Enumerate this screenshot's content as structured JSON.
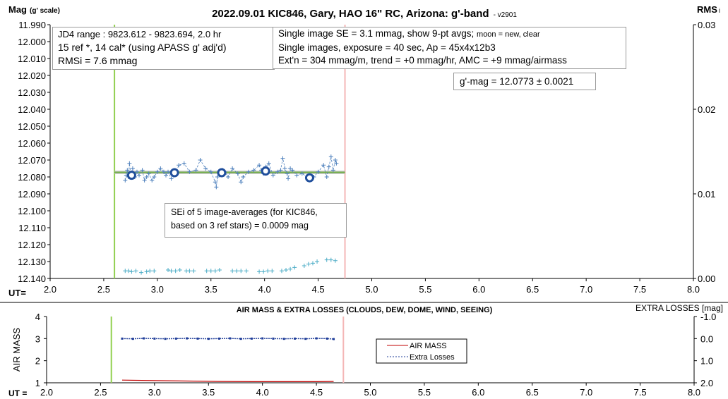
{
  "chart_data": [
    {
      "type": "scatter",
      "title": "2022.09.01 KIC846, Gary, HAO 16\" RC, Arizona: g'-band",
      "version": "- v2901",
      "ylabel_left": "Mag",
      "ylabel_left_note": "(g' scale)",
      "ylabel_right": "RMS",
      "ylabel_right_sub": "i",
      "xlabel": "UT=",
      "xlim": [
        2.0,
        8.0
      ],
      "ylim": [
        12.14,
        11.99
      ],
      "ylim_right": [
        0.0,
        0.03
      ],
      "grid": false,
      "x_ticks": [
        "2.0",
        "2.5",
        "3.0",
        "3.5",
        "4.0",
        "4.5",
        "5.0",
        "5.5",
        "6.0",
        "6.5",
        "7.0",
        "7.5",
        "8.0"
      ],
      "y_ticks": [
        "11.990",
        "12.000",
        "12.010",
        "12.020",
        "12.030",
        "12.040",
        "12.050",
        "12.060",
        "12.070",
        "12.080",
        "12.090",
        "12.100",
        "12.110",
        "12.120",
        "12.130",
        "12.140"
      ],
      "y_ticks_right": [
        "0.03",
        "0.02",
        "0.01",
        "0.00"
      ],
      "vlines": [
        {
          "name": "start",
          "x": 2.6,
          "color": "#92d050"
        },
        {
          "name": "end",
          "x": 4.75,
          "color": "#f4b6b6"
        }
      ],
      "mean_line": {
        "x": [
          2.6,
          4.75
        ],
        "y": 12.0773,
        "color": "#bfbfbf"
      },
      "fit_line": {
        "x": [
          2.6,
          4.75
        ],
        "y": 12.0773,
        "color": "#70ad47"
      },
      "series": [
        {
          "kind": "single",
          "color": "#4f81bd",
          "x": [
            2.7,
            2.71,
            2.72,
            2.73,
            2.74,
            2.75,
            2.77,
            2.79,
            2.81,
            2.83,
            2.86,
            2.88,
            2.9,
            2.92,
            2.95,
            2.97,
            3.0,
            3.03,
            3.06,
            3.08,
            3.1,
            3.13,
            3.15,
            3.17,
            3.2,
            3.25,
            3.3,
            3.36,
            3.4,
            3.45,
            3.5,
            3.54,
            3.55,
            3.56,
            3.58,
            3.61,
            3.63,
            3.66,
            3.7,
            3.75,
            3.78,
            3.8,
            3.85,
            3.9,
            3.95,
            3.97,
            3.99,
            4.01,
            4.04,
            4.08,
            4.12,
            4.15,
            4.17,
            4.19,
            4.21,
            4.22,
            4.24,
            4.26,
            4.3,
            4.35,
            4.4,
            4.46,
            4.5,
            4.55,
            4.58,
            4.6,
            4.62,
            4.64,
            4.66,
            4.67
          ],
          "y": [
            12.082,
            12.079,
            12.076,
            12.08,
            12.072,
            12.078,
            12.075,
            12.08,
            12.077,
            12.079,
            12.076,
            12.082,
            12.08,
            12.078,
            12.082,
            12.08,
            12.077,
            12.075,
            12.077,
            12.079,
            12.077,
            12.081,
            12.079,
            12.078,
            12.073,
            12.072,
            12.077,
            12.076,
            12.07,
            12.075,
            12.077,
            12.083,
            12.086,
            12.08,
            12.078,
            12.076,
            12.077,
            12.08,
            12.075,
            12.078,
            12.083,
            12.08,
            12.077,
            12.076,
            12.073,
            12.076,
            12.078,
            12.074,
            12.072,
            12.079,
            12.077,
            12.076,
            12.069,
            12.075,
            12.078,
            12.081,
            12.075,
            12.076,
            12.079,
            12.078,
            12.08,
            12.08,
            12.077,
            12.073,
            12.08,
            12.074,
            12.068,
            12.076,
            12.07,
            12.072
          ]
        },
        {
          "kind": "9-pt avg",
          "color": "#1f4e9c",
          "x": [
            2.76,
            3.16,
            3.6,
            4.01,
            4.42
          ],
          "y": [
            12.079,
            12.0775,
            12.0775,
            12.0765,
            12.0805
          ]
        },
        {
          "kind": "RMSi",
          "axis": "right",
          "color": "#4bacc6",
          "x": [
            2.7,
            2.73,
            2.76,
            2.8,
            2.85,
            2.9,
            2.93,
            2.97,
            3.1,
            3.13,
            3.17,
            3.21,
            3.27,
            3.3,
            3.34,
            3.46,
            3.5,
            3.54,
            3.58,
            3.7,
            3.74,
            3.78,
            3.83,
            3.95,
            3.99,
            4.03,
            4.07,
            4.16,
            4.2,
            4.24,
            4.28,
            4.37,
            4.41,
            4.45,
            4.49,
            4.58,
            4.62,
            4.66
          ],
          "y": [
            0.0009,
            0.0009,
            0.0008,
            0.0009,
            0.0007,
            0.0008,
            0.0009,
            0.0009,
            0.001,
            0.0009,
            0.0009,
            0.001,
            0.0009,
            0.0009,
            0.0009,
            0.0009,
            0.0009,
            0.0009,
            0.001,
            0.0009,
            0.0009,
            0.0009,
            0.0009,
            0.0008,
            0.0008,
            0.0009,
            0.0009,
            0.0009,
            0.001,
            0.0011,
            0.0013,
            0.0015,
            0.0017,
            0.0018,
            0.002,
            0.0022,
            0.0022,
            0.0021
          ]
        }
      ]
    },
    {
      "type": "line",
      "title": "AIR MASS & EXTRA LOSSES (CLOUDS, DEW, DOME, WIND, SEEING)",
      "ylabel_left": "AIR MASS",
      "ylabel_right": "EXTRA LOSSES [mag]",
      "xlabel": "UT =",
      "xlim": [
        2.0,
        8.0
      ],
      "ylim": [
        1,
        4
      ],
      "ylim_right": [
        2.0,
        -1.0
      ],
      "grid": false,
      "legend_position": "center-left",
      "x_ticks": [
        "2.0",
        "2.5",
        "3.0",
        "3.5",
        "4.0",
        "4.5",
        "5.0",
        "5.5",
        "6.0",
        "6.5",
        "7.0",
        "7.5",
        "8.0"
      ],
      "y_ticks": [
        "1",
        "2",
        "3",
        "4"
      ],
      "y_ticks_right": [
        "-1.0",
        "0.0",
        "1.0",
        "2.0"
      ],
      "vlines": [
        {
          "name": "start",
          "x": 2.6,
          "color": "#92d050"
        },
        {
          "name": "end",
          "x": 4.75,
          "color": "#f4b6b6"
        }
      ],
      "series": [
        {
          "name": "AIR MASS",
          "color": "#c00000",
          "x": [
            2.7,
            3.0,
            3.3,
            3.6,
            3.9,
            4.2,
            4.5,
            4.66
          ],
          "y": [
            1.12,
            1.1,
            1.08,
            1.06,
            1.05,
            1.05,
            1.05,
            1.06
          ]
        },
        {
          "name": "Extra Losses",
          "axis": "right",
          "color": "#1f3d99",
          "x": [
            2.7,
            2.8,
            2.9,
            3.0,
            3.1,
            3.2,
            3.3,
            3.4,
            3.5,
            3.6,
            3.7,
            3.8,
            3.9,
            4.0,
            4.1,
            4.2,
            4.3,
            4.4,
            4.5,
            4.6,
            4.66
          ],
          "y": [
            0.0,
            0.01,
            -0.01,
            0.0,
            0.01,
            0.0,
            -0.01,
            0.0,
            0.01,
            0.0,
            -0.01,
            0.01,
            0.0,
            -0.01,
            0.0,
            0.01,
            0.0,
            0.01,
            -0.01,
            0.0,
            0.02
          ]
        }
      ]
    }
  ],
  "annotations": {
    "jd_range": "JD4 range : 9823.612 - 9823.694,  2.0 hr",
    "ref_cal": "15 ref *, 14 cal* (using APASS g' adj'd)",
    "rmsi": "RMSi = 7.6 mmag",
    "se_main": "Single image SE = 3.1 mmag, show  9-pt avgs;",
    "se_small": "moon = new, clear",
    "exposure": "Single images, exposure = 40 sec, Ap = 45x4x12b3",
    "extn": "Ext'n = 304 mmag/m, trend = +0 mmag/hr, AMC = +9 mmag/airmass",
    "gmag": "g'-mag = 12.0773 ± 0.0021",
    "sei_line1": "SEi of 5 image-averages (for KIC846,",
    "sei_line2": "based on 3 ref stars) = 0.0009 mag"
  }
}
